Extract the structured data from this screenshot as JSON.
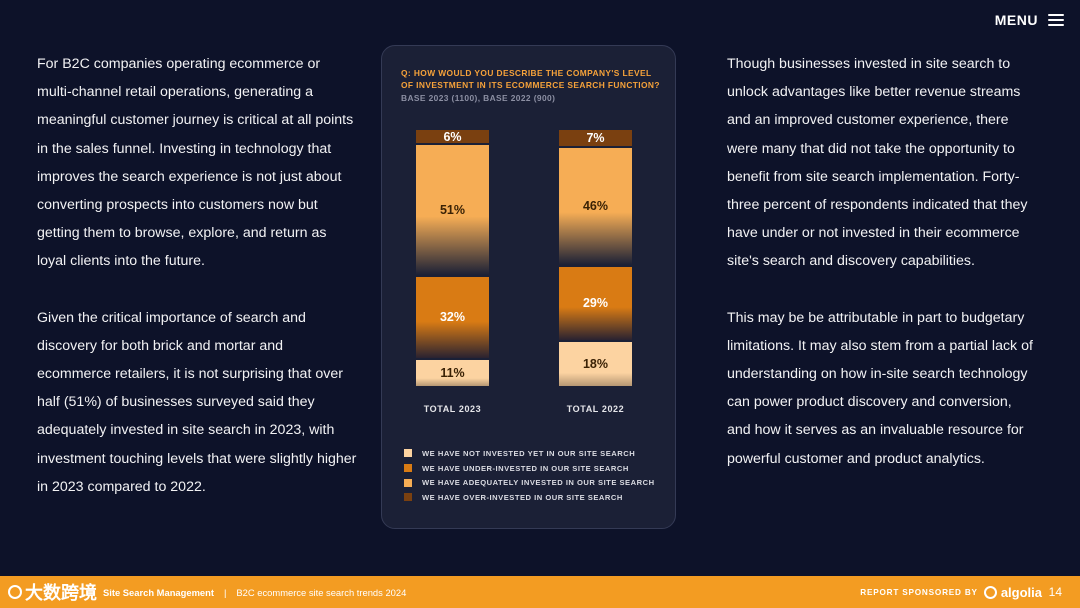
{
  "header": {
    "menu_label": "MENU"
  },
  "left_column": {
    "p1": "For B2C companies operating ecommerce or multi-channel retail operations, generating  a meaningful customer journey is critical at all points in the sales funnel. Investing in technology that improves the search experience is not just about converting prospects into customers now but getting them to browse, explore, and return as loyal clients into the future.",
    "p2": "Given the critical importance of search and discovery for both brick and mortar and ecommerce retailers, it is not surprising that over half (51%) of businesses surveyed said they adequately invested in site search in 2023, with investment touching levels that were slightly higher in 2023 compared to 2022."
  },
  "right_column": {
    "p1": "Though businesses invested in site search to unlock advantages like better revenue streams and an improved customer experience, there were many that did not take the opportunity to benefit from site search implementation. Forty-three percent of respondents indicated that they have under or not invested in their ecommerce site's search and discovery capabilities.",
    "p2": "This may be be attributable in part to budgetary limitations. It may also stem from a partial lack of understanding on how in-site search technology can power product discovery and conversion, and how it serves as an invaluable resource for powerful customer and product analytics."
  },
  "card": {
    "question": "Q: HOW WOULD YOU DESCRIBE THE COMPANY'S LEVEL OF INVESTMENT IN ITS ECOMMERCE SEARCH FUNCTION?",
    "base": "BASE 2023 (1100), BASE 2022 (900)"
  },
  "chart_data": {
    "type": "bar",
    "stacked": true,
    "title": "Q: HOW WOULD YOU DESCRIBE THE COMPANY'S LEVEL OF INVESTMENT IN ITS ECOMMERCE SEARCH FUNCTION?",
    "categories": [
      "TOTAL 2023",
      "TOTAL 2022"
    ],
    "series": [
      {
        "name": "WE HAVE NOT INVESTED YET IN OUR SITE SEARCH",
        "values": [
          11,
          18
        ],
        "color": "#fcd3a1"
      },
      {
        "name": "WE HAVE UNDER-INVESTED IN OUR SITE SEARCH",
        "values": [
          32,
          29
        ],
        "color": "#d97b14"
      },
      {
        "name": "WE HAVE ADEQUATELY INVESTED IN OUR SITE SEARCH",
        "values": [
          51,
          46
        ],
        "color": "#f6ad55"
      },
      {
        "name": "WE HAVE OVER-INVESTED IN OUR SITE SEARCH",
        "values": [
          6,
          7
        ],
        "color": "#7a4010"
      }
    ],
    "value_labels": [
      [
        "11%",
        "32%",
        "51%",
        "6%"
      ],
      [
        "18%",
        "29%",
        "46%",
        "7%"
      ]
    ],
    "ylim": [
      0,
      100
    ]
  },
  "footer": {
    "brand": "Site Search Management",
    "subtitle": "B2C ecommerce site search trends 2024",
    "watermark": "大数跨境",
    "sponsor": "REPORT SPONSORED BY",
    "sponsor_name": "algolia",
    "page": "14"
  }
}
